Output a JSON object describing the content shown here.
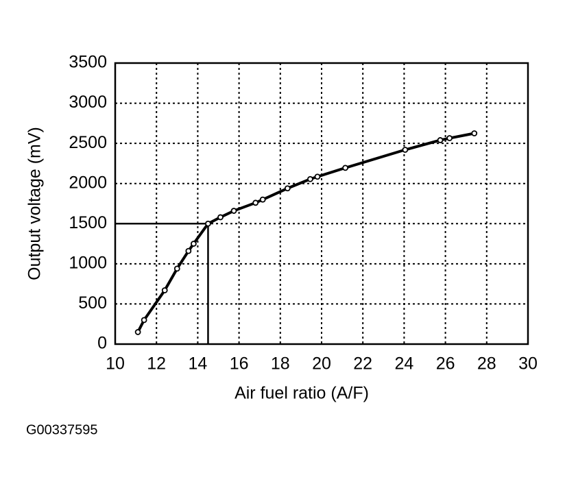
{
  "chart_data": {
    "type": "line",
    "x_label": "Air fuel ratio (A/F)",
    "y_label": "Output voltage (mV)",
    "footnote": "G00337595",
    "x": [
      11.1,
      11.4,
      12.4,
      13.0,
      13.55,
      13.8,
      14.5,
      15.1,
      15.75,
      16.8,
      17.15,
      18.35,
      19.45,
      19.8,
      21.15,
      24.05,
      25.75,
      26.2,
      27.4
    ],
    "values": [
      150,
      300,
      670,
      940,
      1160,
      1250,
      1500,
      1580,
      1660,
      1760,
      1800,
      1940,
      2055,
      2085,
      2195,
      2420,
      2540,
      2565,
      2625
    ],
    "color": "#000000",
    "reference": {
      "x": 14.5,
      "y": 1500
    },
    "xlim": [
      10,
      30
    ],
    "xticks": [
      10,
      12,
      14,
      16,
      18,
      20,
      22,
      24,
      26,
      28,
      30
    ],
    "ylim": [
      0,
      3500
    ],
    "yticks": [
      0,
      500,
      1000,
      1500,
      2000,
      2500,
      3000,
      3500
    ],
    "grid": true
  }
}
